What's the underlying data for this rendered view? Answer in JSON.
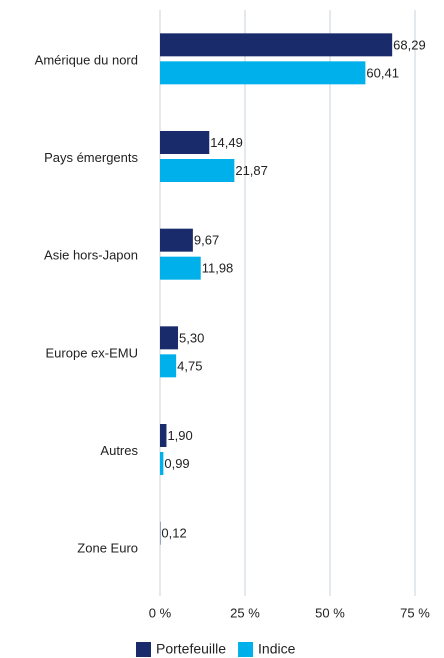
{
  "chart_data": {
    "type": "bar",
    "orientation": "horizontal",
    "categories": [
      "Amérique du nord",
      "Pays émergents",
      "Asie hors-Japon",
      "Europe ex-EMU",
      "Autres",
      "Zone Euro"
    ],
    "series": [
      {
        "name": "Portefeuille",
        "color": "#1a2b6b",
        "values": [
          68.29,
          14.49,
          9.67,
          5.3,
          1.9,
          0.12
        ],
        "value_labels": [
          "68,29",
          "14,49",
          "9,67",
          "5,30",
          "1,90",
          "0,12"
        ]
      },
      {
        "name": "Indice",
        "color": "#00b0ea",
        "values": [
          60.41,
          21.87,
          11.98,
          4.75,
          0.99,
          null
        ],
        "value_labels": [
          "60,41",
          "21,87",
          "11,98",
          "4,75",
          "0,99",
          null
        ]
      }
    ],
    "xlim": [
      0,
      75
    ],
    "xticks": [
      {
        "value": 0,
        "label": "0 %"
      },
      {
        "value": 25,
        "label": "25 %"
      },
      {
        "value": 50,
        "label": "50 %"
      },
      {
        "value": 75,
        "label": "75 %"
      }
    ],
    "grid": true,
    "legend": "bottom"
  }
}
